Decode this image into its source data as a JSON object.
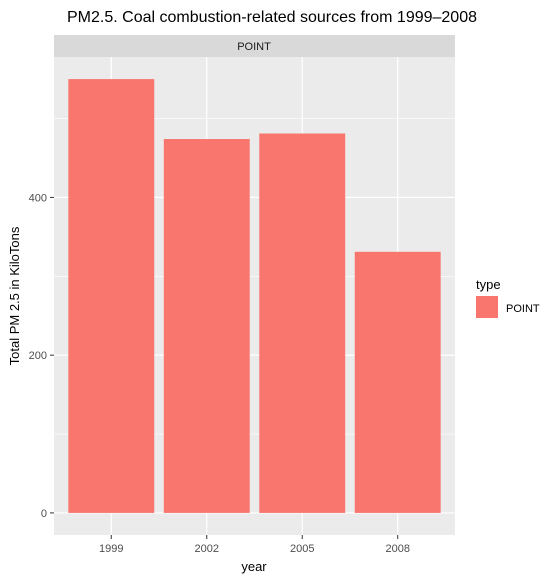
{
  "chart_data": {
    "type": "bar",
    "title": "PM2.5. Coal combustion-related sources from 1999–2008",
    "facet_label": "POINT",
    "xlabel": "year",
    "ylabel": "Total PM 2.5 in KiloTons",
    "categories": [
      "1999",
      "2002",
      "2005",
      "2008"
    ],
    "series": [
      {
        "name": "POINT",
        "values": [
          550,
          474,
          481,
          331
        ],
        "color": "#F8766D"
      }
    ],
    "yticks": [
      0,
      200,
      400
    ],
    "ylim": [
      -28,
      578
    ],
    "grid": true,
    "legend": {
      "title": "type",
      "position": "right",
      "entries": [
        "POINT"
      ]
    },
    "colors": {
      "panel": "#EBEBEB",
      "strip": "#D9D9D9",
      "grid": "#FFFFFF",
      "bar": "#F8766D"
    }
  }
}
